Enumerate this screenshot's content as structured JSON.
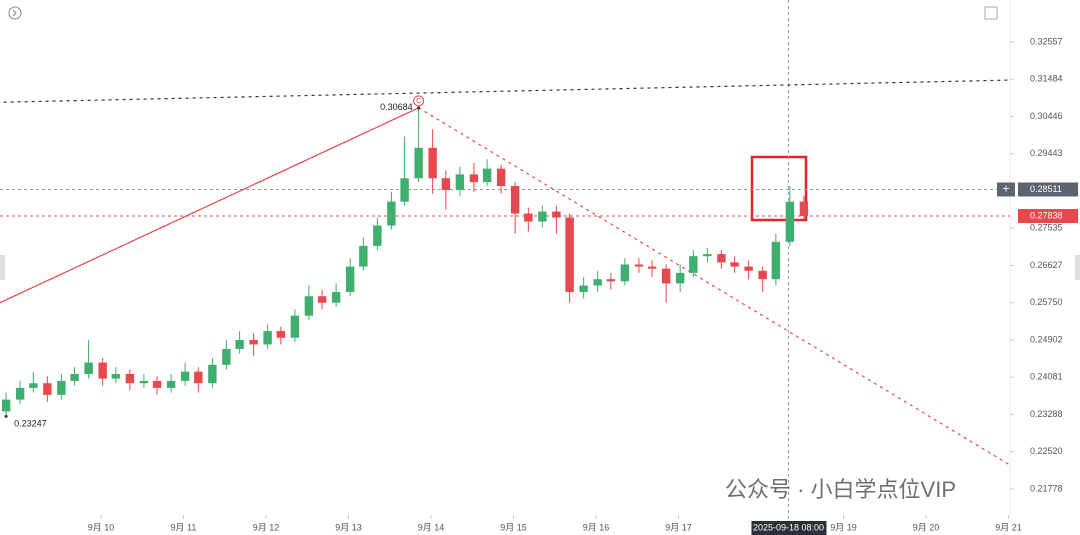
{
  "chart_data": {
    "type": "candlestick",
    "x": [
      8.85,
      9.02,
      9.18,
      9.35,
      9.52,
      9.68,
      9.85,
      10.02,
      10.18,
      10.35,
      10.52,
      10.68,
      10.85,
      11.02,
      11.18,
      11.35,
      11.52,
      11.68,
      11.85,
      12.02,
      12.18,
      12.35,
      12.52,
      12.68,
      12.85,
      13.02,
      13.18,
      13.35,
      13.52,
      13.68,
      13.85,
      14.02,
      14.18,
      14.35,
      14.52,
      14.68,
      14.85,
      15.02,
      15.18,
      15.35,
      15.52,
      15.68,
      15.85,
      16.02,
      16.18,
      16.35,
      16.52,
      16.68,
      16.85,
      17.02,
      17.18,
      17.35,
      17.52,
      17.68,
      17.85,
      18.02,
      18.18,
      18.35,
      18.52
    ],
    "open": [
      0.2335,
      0.236,
      0.2385,
      0.2395,
      0.237,
      0.24,
      0.2415,
      0.244,
      0.2405,
      0.2415,
      0.2395,
      0.24,
      0.2385,
      0.24,
      0.242,
      0.2395,
      0.2435,
      0.247,
      0.249,
      0.248,
      0.251,
      0.2495,
      0.2545,
      0.259,
      0.2575,
      0.26,
      0.266,
      0.271,
      0.276,
      0.282,
      0.288,
      0.296,
      0.288,
      0.285,
      0.289,
      0.287,
      0.2905,
      0.286,
      0.279,
      0.277,
      0.2795,
      0.278,
      0.26,
      0.2615,
      0.263,
      0.2625,
      0.2665,
      0.266,
      0.2655,
      0.262,
      0.2645,
      0.2685,
      0.269,
      0.267,
      0.266,
      0.265,
      0.263,
      0.272,
      0.282
    ],
    "high": [
      0.2375,
      0.24,
      0.242,
      0.241,
      0.2415,
      0.243,
      0.249,
      0.245,
      0.243,
      0.2425,
      0.2415,
      0.241,
      0.2415,
      0.244,
      0.243,
      0.245,
      0.249,
      0.251,
      0.2505,
      0.2525,
      0.252,
      0.256,
      0.2615,
      0.2605,
      0.262,
      0.268,
      0.273,
      0.278,
      0.2845,
      0.299,
      0.30684,
      0.301,
      0.29,
      0.291,
      0.292,
      0.293,
      0.2915,
      0.287,
      0.2805,
      0.281,
      0.281,
      0.279,
      0.2635,
      0.265,
      0.2645,
      0.268,
      0.268,
      0.2675,
      0.2665,
      0.2665,
      0.27,
      0.2705,
      0.27,
      0.2685,
      0.2675,
      0.266,
      0.274,
      0.286,
      0.2835
    ],
    "low": [
      0.23247,
      0.235,
      0.2375,
      0.2355,
      0.236,
      0.239,
      0.2405,
      0.239,
      0.2395,
      0.238,
      0.2385,
      0.237,
      0.2375,
      0.239,
      0.2375,
      0.2385,
      0.2425,
      0.246,
      0.2455,
      0.247,
      0.248,
      0.2485,
      0.2535,
      0.256,
      0.2565,
      0.259,
      0.265,
      0.27,
      0.275,
      0.281,
      0.287,
      0.284,
      0.28,
      0.2835,
      0.2845,
      0.286,
      0.284,
      0.274,
      0.2745,
      0.2755,
      0.274,
      0.2575,
      0.2585,
      0.26,
      0.2605,
      0.2615,
      0.2645,
      0.2635,
      0.2575,
      0.26,
      0.2635,
      0.267,
      0.2655,
      0.2645,
      0.263,
      0.26,
      0.2615,
      0.271,
      0.2775
    ],
    "close": [
      0.236,
      0.2385,
      0.2395,
      0.237,
      0.24,
      0.2415,
      0.244,
      0.2405,
      0.2415,
      0.2395,
      0.24,
      0.2385,
      0.24,
      0.242,
      0.2395,
      0.2435,
      0.247,
      0.249,
      0.248,
      0.251,
      0.2495,
      0.2545,
      0.259,
      0.2575,
      0.26,
      0.266,
      0.271,
      0.276,
      0.282,
      0.288,
      0.296,
      0.288,
      0.285,
      0.289,
      0.287,
      0.2905,
      0.286,
      0.279,
      0.277,
      0.2795,
      0.278,
      0.26,
      0.2615,
      0.263,
      0.2625,
      0.2665,
      0.266,
      0.2655,
      0.262,
      0.2645,
      0.2685,
      0.269,
      0.267,
      0.266,
      0.265,
      0.263,
      0.272,
      0.282,
      0.2784
    ],
    "up_color": "#3fae6e",
    "down_color": "#e5484d",
    "xlim": [
      8.776,
      21.018
    ],
    "xticks": [
      {
        "value": 10,
        "label": "9月 10"
      },
      {
        "value": 11,
        "label": "9月 11"
      },
      {
        "value": 12,
        "label": "9月 12"
      },
      {
        "value": 13,
        "label": "9月 13"
      },
      {
        "value": 14,
        "label": "9月 14"
      },
      {
        "value": 15,
        "label": "9月 15"
      },
      {
        "value": 16,
        "label": "9月 16"
      },
      {
        "value": 17,
        "label": "9月 17"
      },
      {
        "value": 19,
        "label": "9月 19"
      },
      {
        "value": 20,
        "label": "9月 20"
      },
      {
        "value": 21,
        "label": "9月 21"
      }
    ],
    "ylim": [
      0.2133,
      0.3381
    ],
    "log_y": true,
    "yticks": [
      0.32557,
      0.31484,
      0.30446,
      0.29443,
      0.27535,
      0.26627,
      {
        "value": 0.2575,
        "label": "0.25750"
      },
      0.24902,
      0.24081,
      0.23288,
      {
        "value": 0.2252,
        "label": "0.22520"
      },
      0.21778
    ],
    "annotations": [
      {
        "x": 13.85,
        "y": 0.30684,
        "label": "0.30684"
      },
      {
        "x": 8.85,
        "y": 0.23247,
        "label": "0.23247"
      }
    ],
    "wave_label": {
      "x": 13.85,
      "y": 0.30684,
      "text": "C"
    },
    "trendlines": [
      {
        "color": "#e5484d",
        "style": "solid",
        "x": [
          8.776,
          13.85
        ],
        "y": [
          0.2575,
          0.30684
        ]
      },
      {
        "color": "#e5484d",
        "style": "dotted",
        "x": [
          13.85,
          21.018
        ],
        "y": [
          0.30684,
          0.2225
        ]
      },
      {
        "color": "#333333",
        "style": "dotted",
        "x": [
          8.82,
          21.018
        ],
        "y": [
          0.3084,
          0.3146
        ]
      }
    ],
    "crosshair": {
      "x": {
        "value": 18.333,
        "label": "2025-09-18 08:00"
      },
      "y": 0.28511
    },
    "last_price": 0.27838,
    "watermark": "公众号 · 小白学点位VIP"
  }
}
